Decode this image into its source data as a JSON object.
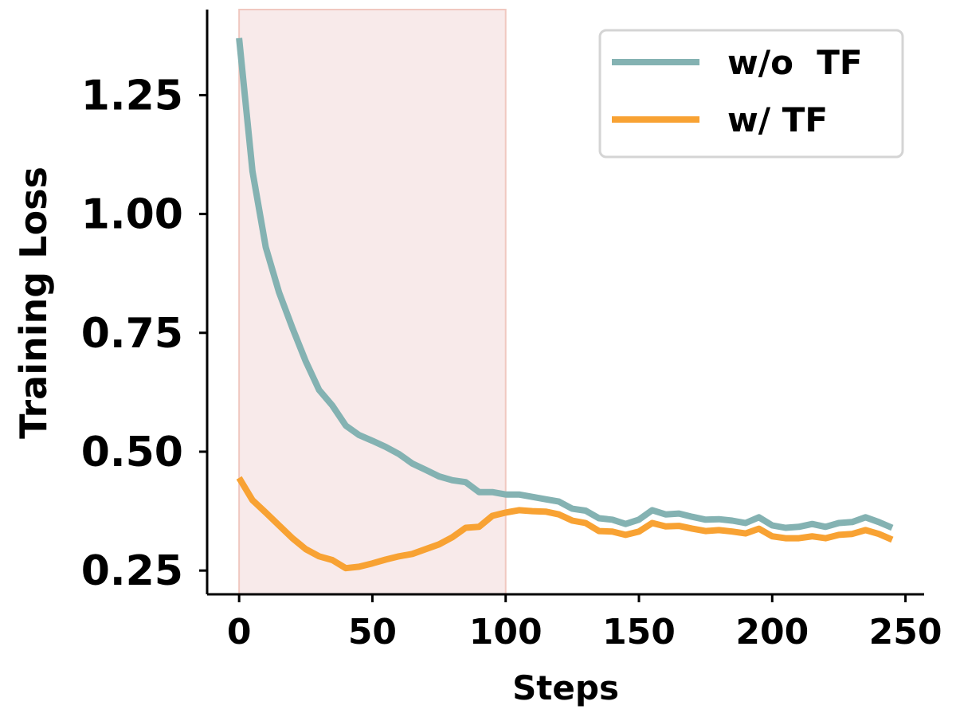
{
  "chart_data": {
    "type": "line",
    "title": "",
    "xlabel": "Steps",
    "ylabel": "Training Loss",
    "xlim": [
      -12,
      257
    ],
    "ylim": [
      0.2,
      1.43
    ],
    "xticks": [
      0,
      50,
      100,
      150,
      200,
      250
    ],
    "xtick_labels": [
      "0",
      "50",
      "100",
      "150",
      "200",
      "250"
    ],
    "yticks": [
      0.25,
      0.5,
      0.75,
      1.0,
      1.25
    ],
    "ytick_labels": [
      "0.25",
      "0.50",
      "0.75",
      "1.00",
      "1.25"
    ],
    "shaded_region": {
      "x_start": 0,
      "x_end": 100,
      "color": "#f8eaea",
      "edge_color": "#f0c8c0"
    },
    "grid": false,
    "legend_position": "top-right",
    "x": [
      0,
      5,
      10,
      15,
      20,
      25,
      30,
      35,
      40,
      45,
      50,
      55,
      60,
      65,
      70,
      75,
      80,
      85,
      90,
      95,
      100,
      105,
      110,
      115,
      120,
      125,
      130,
      135,
      140,
      145,
      150,
      155,
      160,
      165,
      170,
      175,
      180,
      185,
      190,
      195,
      200,
      205,
      210,
      215,
      220,
      225,
      230,
      235,
      240,
      245
    ],
    "series": [
      {
        "name": "w/o  TF",
        "color": "#84b2b2",
        "values": [
          1.37,
          1.09,
          0.93,
          0.835,
          0.76,
          0.69,
          0.63,
          0.597,
          0.555,
          0.535,
          0.523,
          0.51,
          0.495,
          0.475,
          0.462,
          0.448,
          0.44,
          0.436,
          0.415,
          0.415,
          0.41,
          0.41,
          0.405,
          0.4,
          0.395,
          0.38,
          0.376,
          0.36,
          0.357,
          0.348,
          0.357,
          0.377,
          0.368,
          0.37,
          0.363,
          0.357,
          0.358,
          0.355,
          0.35,
          0.362,
          0.345,
          0.34,
          0.342,
          0.348,
          0.342,
          0.35,
          0.352,
          0.362,
          0.352,
          0.34
        ]
      },
      {
        "name": "w/ TF",
        "color": "#f8a233",
        "values": [
          0.445,
          0.398,
          0.372,
          0.345,
          0.318,
          0.295,
          0.28,
          0.272,
          0.255,
          0.258,
          0.265,
          0.273,
          0.28,
          0.285,
          0.295,
          0.305,
          0.32,
          0.34,
          0.342,
          0.365,
          0.372,
          0.377,
          0.375,
          0.374,
          0.368,
          0.355,
          0.35,
          0.333,
          0.332,
          0.325,
          0.332,
          0.35,
          0.343,
          0.344,
          0.338,
          0.333,
          0.335,
          0.332,
          0.328,
          0.338,
          0.322,
          0.318,
          0.318,
          0.322,
          0.318,
          0.325,
          0.327,
          0.335,
          0.327,
          0.315
        ]
      }
    ]
  }
}
